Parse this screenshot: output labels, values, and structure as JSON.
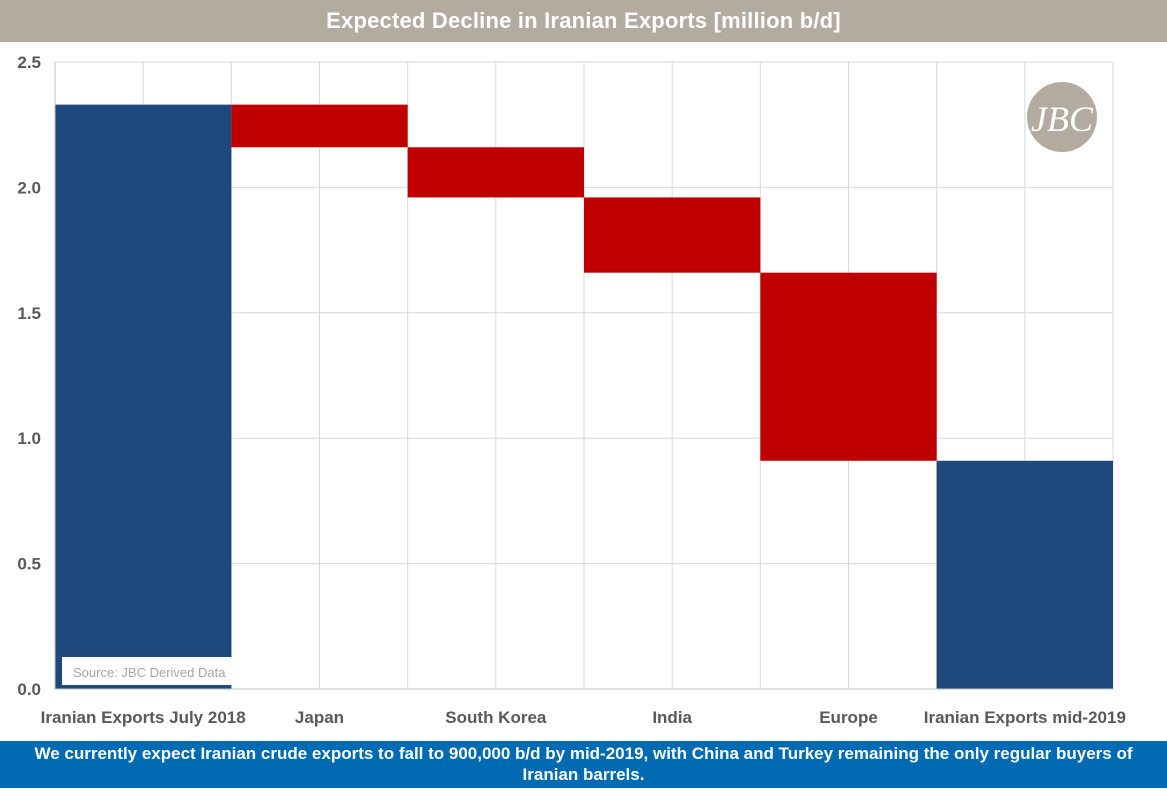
{
  "header": {
    "title": "Expected Decline in Iranian Exports [million b/d]"
  },
  "chart_data": {
    "type": "bar",
    "subtype": "waterfall",
    "title": "Expected Decline in Iranian Exports [million b/d]",
    "xlabel": "",
    "ylabel": "",
    "ylim": [
      0,
      2.5
    ],
    "yticks": [
      0,
      0.5,
      1,
      1.5,
      2,
      2.5
    ],
    "ytick_labels": [
      "0.0",
      "0.5",
      "1.0",
      "1.5",
      "2.0",
      "2.5"
    ],
    "grid": true,
    "legend": "none",
    "categories": [
      "Iranian Exports July 2018",
      "Japan",
      "South Korea",
      "India",
      "Europe",
      "Iranian Exports mid-2019"
    ],
    "bars": [
      {
        "category": "Iranian Exports July 2018",
        "kind": "total",
        "start": 0,
        "end": 2.33
      },
      {
        "category": "Japan",
        "kind": "decrease",
        "start": 2.33,
        "end": 2.16
      },
      {
        "category": "South Korea",
        "kind": "decrease",
        "start": 2.16,
        "end": 1.96
      },
      {
        "category": "India",
        "kind": "decrease",
        "start": 1.96,
        "end": 1.66
      },
      {
        "category": "Europe",
        "kind": "decrease",
        "start": 1.66,
        "end": 0.91
      },
      {
        "category": "Iranian Exports mid-2019",
        "kind": "total",
        "start": 0,
        "end": 0.91
      }
    ],
    "colors": {
      "total": "#1f497d",
      "decrease": "#c00000",
      "grid": "#d9d9d9",
      "axis_text": "#595959"
    },
    "annotations": [
      "Source: JBC Derived Data"
    ]
  },
  "logo": {
    "text": "JBC"
  },
  "footer": {
    "text": "We currently expect Iranian crude exports to fall to 900,000 b/d by mid-2019, with China and Turkey remaining the only regular buyers of Iranian barrels."
  }
}
